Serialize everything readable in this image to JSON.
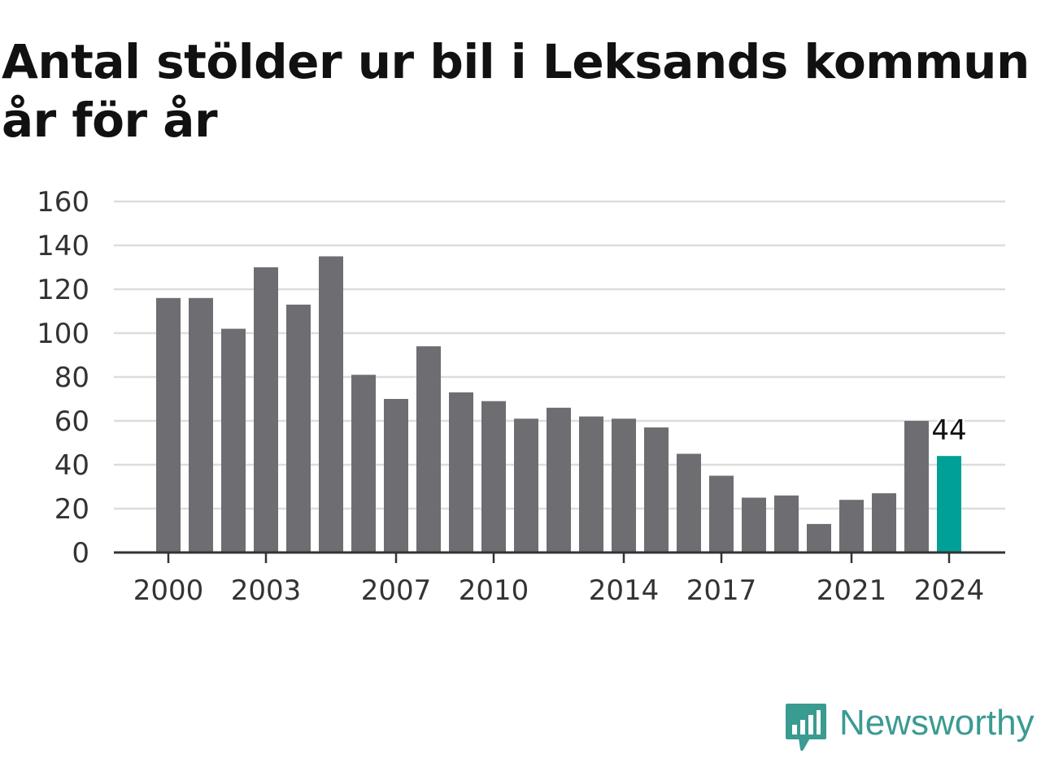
{
  "title": "Antal stölder ur bil i Leksands kommun år för år",
  "chart_data": {
    "type": "bar",
    "categories": [
      "2000",
      "2001",
      "2002",
      "2003",
      "2004",
      "2005",
      "2006",
      "2007",
      "2008",
      "2009",
      "2010",
      "2011",
      "2012",
      "2013",
      "2014",
      "2015",
      "2016",
      "2017",
      "2018",
      "2019",
      "2020",
      "2021",
      "2022",
      "2023",
      "2024"
    ],
    "values": [
      116,
      116,
      102,
      130,
      113,
      135,
      81,
      70,
      94,
      73,
      69,
      61,
      66,
      62,
      61,
      57,
      45,
      35,
      25,
      26,
      13,
      24,
      27,
      60,
      44
    ],
    "x_tick_labels": [
      "2000",
      "2003",
      "2007",
      "2010",
      "2014",
      "2017",
      "2021",
      "2024"
    ],
    "y_ticks": [
      0,
      20,
      40,
      60,
      80,
      100,
      120,
      140,
      160
    ],
    "ylim": [
      0,
      160
    ],
    "highlight": {
      "category": "2024",
      "label": "44"
    },
    "grid": true,
    "colors": {
      "bar": "#6e6d72",
      "highlight": "#00a096",
      "grid": "#dddddd",
      "axis": "#333333",
      "text": "#333333"
    }
  },
  "brand": {
    "name": "Newsworthy",
    "color": "#3a9b91",
    "icon": "newsworthy-bar-chart-icon"
  }
}
